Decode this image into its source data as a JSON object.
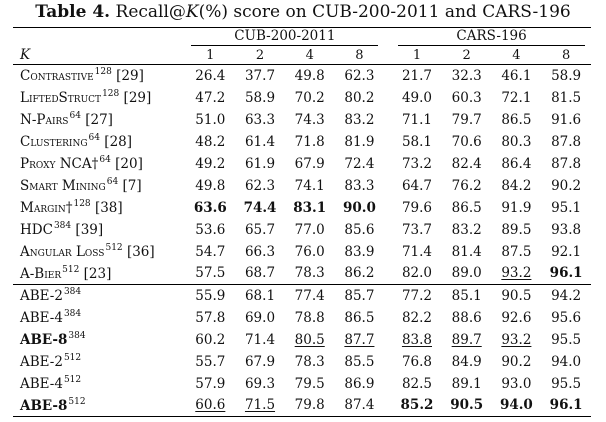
{
  "caption": {
    "label": "Table 4.",
    "text_before_k": "Recall@",
    "k_symbol": "K",
    "text_after_k": "(%) score on CUB-200-2011 and CARS-196"
  },
  "header": {
    "k_label": "K",
    "groups": [
      "CUB-200-2011",
      "CARS-196"
    ],
    "k_values": [
      "1",
      "2",
      "4",
      "8",
      "1",
      "2",
      "4",
      "8"
    ]
  },
  "rows": [
    {
      "name": "Contrastive",
      "sup": "128",
      "ref": "[29]",
      "values": [
        "26.4",
        "37.7",
        "49.8",
        "62.3",
        "21.7",
        "32.3",
        "46.1",
        "58.9"
      ],
      "bold": [],
      "underline": []
    },
    {
      "name": "LiftedStruct",
      "sup": "128",
      "ref": "[29]",
      "values": [
        "47.2",
        "58.9",
        "70.2",
        "80.2",
        "49.0",
        "60.3",
        "72.1",
        "81.5"
      ],
      "bold": [],
      "underline": []
    },
    {
      "name": "N-Pairs",
      "sup": "64",
      "ref": "[27]",
      "values": [
        "51.0",
        "63.3",
        "74.3",
        "83.2",
        "71.1",
        "79.7",
        "86.5",
        "91.6"
      ],
      "bold": [],
      "underline": []
    },
    {
      "name": "Clustering",
      "sup": "64",
      "ref": "[28]",
      "values": [
        "48.2",
        "61.4",
        "71.8",
        "81.9",
        "58.1",
        "70.6",
        "80.3",
        "87.8"
      ],
      "bold": [],
      "underline": []
    },
    {
      "name": "Proxy NCA†",
      "sup": "64",
      "ref": "[20]",
      "values": [
        "49.2",
        "61.9",
        "67.9",
        "72.4",
        "73.2",
        "82.4",
        "86.4",
        "87.8"
      ],
      "bold": [],
      "underline": []
    },
    {
      "name": "Smart Mining",
      "sup": "64",
      "ref": "[7]",
      "values": [
        "49.8",
        "62.3",
        "74.1",
        "83.3",
        "64.7",
        "76.2",
        "84.2",
        "90.2"
      ],
      "bold": [],
      "underline": []
    },
    {
      "name": "Margin†",
      "sup": "128",
      "ref": "[38]",
      "values": [
        "63.6",
        "74.4",
        "83.1",
        "90.0",
        "79.6",
        "86.5",
        "91.9",
        "95.1"
      ],
      "bold": [
        0,
        1,
        2,
        3
      ],
      "underline": []
    },
    {
      "name": "HDC",
      "sup": "384",
      "ref": "[39]",
      "values": [
        "53.6",
        "65.7",
        "77.0",
        "85.6",
        "73.7",
        "83.2",
        "89.5",
        "93.8"
      ],
      "bold": [],
      "underline": []
    },
    {
      "name": "Angular Loss",
      "sup": "512",
      "ref": "[36]",
      "values": [
        "54.7",
        "66.3",
        "76.0",
        "83.9",
        "71.4",
        "81.4",
        "87.5",
        "92.1"
      ],
      "bold": [],
      "underline": []
    },
    {
      "name": "A-Bier",
      "sup": "512",
      "ref": "[23]",
      "values": [
        "57.5",
        "68.7",
        "78.3",
        "86.2",
        "82.0",
        "89.0",
        "93.2",
        "96.1"
      ],
      "bold": [
        7
      ],
      "underline": [
        6
      ]
    },
    {
      "name": "ABE-2",
      "sup": "384",
      "ref": "",
      "values": [
        "55.9",
        "68.1",
        "77.4",
        "85.7",
        "77.2",
        "85.1",
        "90.5",
        "94.2"
      ],
      "bold": [],
      "underline": [],
      "name_bold": false
    },
    {
      "name": "ABE-4",
      "sup": "384",
      "ref": "",
      "values": [
        "57.8",
        "69.0",
        "78.8",
        "86.5",
        "82.2",
        "88.6",
        "92.6",
        "95.6"
      ],
      "bold": [],
      "underline": [],
      "name_bold": false
    },
    {
      "name": "ABE-8",
      "sup": "384",
      "ref": "",
      "values": [
        "60.2",
        "71.4",
        "80.5",
        "87.7",
        "83.8",
        "89.7",
        "93.2",
        "95.5"
      ],
      "bold": [],
      "underline": [
        2,
        3,
        4,
        5,
        6
      ],
      "name_bold": true
    },
    {
      "name": "ABE-2",
      "sup": "512",
      "ref": "",
      "values": [
        "55.7",
        "67.9",
        "78.3",
        "85.5",
        "76.8",
        "84.9",
        "90.2",
        "94.0"
      ],
      "bold": [],
      "underline": [],
      "name_bold": false
    },
    {
      "name": "ABE-4",
      "sup": "512",
      "ref": "",
      "values": [
        "57.9",
        "69.3",
        "79.5",
        "86.9",
        "82.5",
        "89.1",
        "93.0",
        "95.5"
      ],
      "bold": [],
      "underline": [],
      "name_bold": false
    },
    {
      "name": "ABE-8",
      "sup": "512",
      "ref": "",
      "values": [
        "60.6",
        "71.5",
        "79.8",
        "87.4",
        "85.2",
        "90.5",
        "94.0",
        "96.1"
      ],
      "bold": [
        4,
        5,
        6,
        7
      ],
      "underline": [
        0,
        1
      ],
      "name_bold": true
    }
  ]
}
